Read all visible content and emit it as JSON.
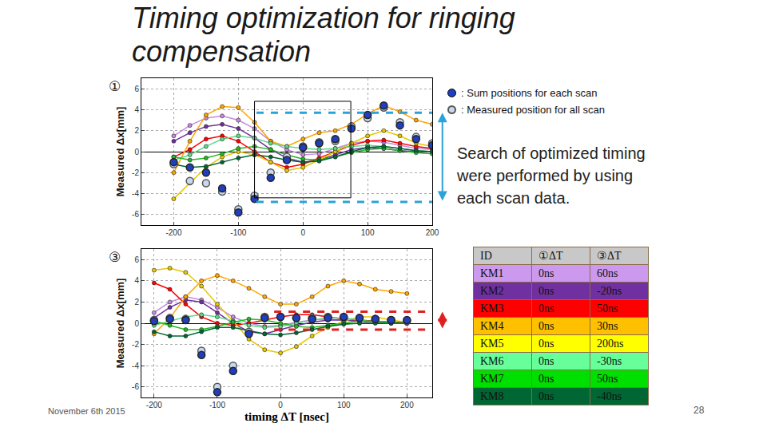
{
  "slide": {
    "title": "Timing optimization for ringing compensation",
    "note": "Search of optimized timing were performed by using each scan data.",
    "date": "November 6th 2015",
    "page": "28",
    "table": {
      "header": [
        "ID",
        "①ΔT",
        "③ΔT"
      ],
      "header_color": "#c8c8c8",
      "rows": [
        {
          "cells": [
            "KM1",
            "0ns",
            "60ns"
          ],
          "color": "#cc99ee"
        },
        {
          "cells": [
            "KM2",
            "0ns",
            "-20ns"
          ],
          "color": "#7030a0"
        },
        {
          "cells": [
            "KM3",
            "0ns",
            "50ns"
          ],
          "color": "#ff0000"
        },
        {
          "cells": [
            "KM4",
            "0ns",
            "30ns"
          ],
          "color": "#ffc000"
        },
        {
          "cells": [
            "KM5",
            "0ns",
            "200ns"
          ],
          "color": "#ffff00"
        },
        {
          "cells": [
            "KM6",
            "0ns",
            "-30ns"
          ],
          "color": "#66ff99"
        },
        {
          "cells": [
            "KM7",
            "0ns",
            "50ns"
          ],
          "color": "#00e000"
        },
        {
          "cells": [
            "KM8",
            "0ns",
            "-40ns"
          ],
          "color": "#006633"
        }
      ]
    }
  },
  "chart_data": [
    {
      "type": "line",
      "panel_label": "①",
      "ylabel": "Measured Δx[mm]",
      "xlim": [
        -250,
        200
      ],
      "xticks": [
        -200,
        -100,
        0,
        100,
        200
      ],
      "ylim": [
        -7,
        7
      ],
      "yticks": [
        -6,
        -4,
        -2,
        0,
        2,
        4,
        6
      ],
      "grid": true,
      "x": [
        -200,
        -175,
        -150,
        -125,
        -100,
        -75,
        -50,
        -25,
        0,
        25,
        50,
        75,
        100,
        125,
        150,
        175,
        200
      ],
      "box": {
        "x": [
          -75,
          74
        ],
        "y": [
          -4.4,
          4.8
        ]
      },
      "reference_lines": {
        "values": [
          3.7,
          -4.8
        ],
        "from": -72,
        "color": "#29a3d9",
        "line_style": "dashed"
      },
      "series": [
        {
          "name": "KM1",
          "color": "#c58be0",
          "marker": "circle",
          "line_style": "solid",
          "values": [
            1.5,
            2.5,
            3.2,
            3.4,
            3.0,
            2.2,
            1.0,
            0.2,
            -0.3,
            -0.2,
            0.3,
            0.8,
            1.0,
            0.9,
            0.6,
            0.3,
            0.2
          ]
        },
        {
          "name": "KM2",
          "color": "#7030a0",
          "marker": "circle",
          "line_style": "solid",
          "values": [
            1.0,
            1.8,
            2.4,
            2.6,
            2.2,
            1.3,
            0.2,
            -0.6,
            -1.0,
            -0.8,
            -0.3,
            0.2,
            0.4,
            0.3,
            0.1,
            0.0,
            0.0
          ]
        },
        {
          "name": "KM3",
          "color": "#ff0000",
          "marker": "circle",
          "line_style": "solid",
          "values": [
            -0.5,
            0.2,
            1.2,
            1.5,
            1.0,
            0.0,
            -1.0,
            -1.5,
            -1.2,
            -0.6,
            0.0,
            0.6,
            1.0,
            1.1,
            0.8,
            0.5,
            0.3
          ]
        },
        {
          "name": "KM4",
          "color": "#ffa500",
          "marker": "circle",
          "line_style": "solid",
          "values": [
            -2.0,
            1.0,
            3.5,
            4.3,
            4.2,
            2.8,
            1.0,
            0.5,
            1.2,
            1.8,
            2.0,
            2.6,
            3.6,
            4.4,
            3.8,
            3.0,
            2.6
          ]
        },
        {
          "name": "KM5",
          "color": "#e6c800",
          "marker": "circle",
          "line_style": "solid",
          "values": [
            -4.5,
            -3.0,
            -1.5,
            -0.5,
            0.0,
            -0.3,
            -1.0,
            -1.8,
            -1.5,
            -0.8,
            0.0,
            0.8,
            1.5,
            2.0,
            1.5,
            0.8,
            0.5
          ]
        },
        {
          "name": "KM6",
          "color": "#5fd98a",
          "marker": "circle",
          "line_style": "solid",
          "values": [
            -0.8,
            -0.3,
            0.5,
            1.2,
            1.5,
            1.3,
            0.8,
            0.5,
            0.3,
            0.2,
            0.3,
            0.5,
            0.6,
            0.5,
            0.3,
            0.1,
            0.0
          ]
        },
        {
          "name": "KM7",
          "color": "#22b822",
          "marker": "circle",
          "line_style": "solid",
          "values": [
            -0.5,
            -0.8,
            -0.6,
            -0.2,
            0.3,
            0.5,
            0.2,
            -0.3,
            -0.7,
            -0.8,
            -0.5,
            -0.1,
            0.2,
            0.3,
            0.1,
            -0.1,
            -0.2
          ]
        },
        {
          "name": "KM8",
          "color": "#006633",
          "marker": "circle",
          "line_style": "solid",
          "values": [
            -1.2,
            -1.5,
            -1.4,
            -1.0,
            -0.6,
            -0.3,
            -0.5,
            -0.8,
            -1.0,
            -0.9,
            -0.5,
            0.0,
            0.4,
            0.5,
            0.3,
            0.1,
            0.0
          ]
        },
        {
          "name": ": Measured position for all scan",
          "type": "scatter",
          "color": "#c8d8f0",
          "marker": "circle",
          "values": [
            -1.2,
            -2.8,
            -3.0,
            -3.8,
            -5.5,
            -4.2,
            -2.0,
            -0.5,
            0.5,
            0.9,
            1.0,
            2.4,
            3.2,
            4.2,
            2.8,
            1.4,
            0.8
          ]
        },
        {
          "name": ": Sum positions for each scan",
          "type": "scatter",
          "color": "#1f3fbf",
          "marker": "circle",
          "values": [
            -1.0,
            -1.5,
            -2.0,
            -3.5,
            -5.8,
            -4.5,
            -2.5,
            -0.8,
            0.4,
            0.8,
            1.2,
            2.2,
            3.5,
            4.4,
            2.5,
            1.2,
            0.6
          ]
        }
      ]
    },
    {
      "type": "line",
      "panel_label": "③",
      "ylabel": "Measured Δx[mm]",
      "xlabel": "timing ΔT [nsec]",
      "xlim": [
        -220,
        240
      ],
      "xticks": [
        -200,
        -100,
        0,
        100,
        200
      ],
      "ylim": [
        -7,
        7
      ],
      "yticks": [
        -6,
        -4,
        -2,
        0,
        2,
        4,
        6
      ],
      "grid": true,
      "x": [
        -200,
        -175,
        -150,
        -125,
        -100,
        -75,
        -50,
        -25,
        0,
        25,
        50,
        75,
        100,
        125,
        150,
        175,
        200
      ],
      "reference_lines": {
        "values": [
          1.1,
          -0.6
        ],
        "from": -10,
        "color": "#e02020",
        "line_style": "dashed"
      },
      "series": [
        {
          "name": "KM1",
          "color": "#c58be0",
          "marker": "circle",
          "line_style": "solid",
          "values": [
            1.0,
            2.0,
            2.5,
            2.2,
            1.5,
            0.6,
            0.0,
            -0.3,
            -0.2,
            0.1,
            0.3,
            0.4,
            0.3,
            0.2,
            0.1,
            0.0,
            0.0
          ]
        },
        {
          "name": "KM2",
          "color": "#7030a0",
          "marker": "circle",
          "line_style": "solid",
          "values": [
            0.5,
            1.5,
            2.2,
            2.0,
            1.0,
            0.0,
            -0.8,
            -1.0,
            -0.6,
            -0.2,
            0.1,
            0.3,
            0.3,
            0.2,
            0.1,
            0.0,
            0.0
          ]
        },
        {
          "name": "KM3",
          "color": "#ff0000",
          "marker": "circle",
          "line_style": "solid",
          "values": [
            3.8,
            3.2,
            1.8,
            0.6,
            0.0,
            -0.2,
            0.0,
            0.3,
            0.6,
            0.8,
            0.8,
            0.6,
            0.4,
            0.3,
            0.2,
            0.1,
            0.1
          ]
        },
        {
          "name": "KM4",
          "color": "#ffa500",
          "marker": "circle",
          "line_style": "solid",
          "values": [
            -1.0,
            0.5,
            2.5,
            4.0,
            4.5,
            4.0,
            3.3,
            2.5,
            1.8,
            1.8,
            2.5,
            3.5,
            4.0,
            3.7,
            3.2,
            3.0,
            2.8
          ]
        },
        {
          "name": "KM5",
          "color": "#e6c800",
          "marker": "circle",
          "line_style": "solid",
          "values": [
            5.0,
            5.2,
            4.8,
            3.5,
            1.8,
            0.2,
            -1.5,
            -2.5,
            -2.8,
            -2.2,
            -1.2,
            -0.4,
            0.2,
            0.6,
            0.6,
            0.3,
            0.1
          ]
        },
        {
          "name": "KM6",
          "color": "#5fd98a",
          "marker": "circle",
          "line_style": "solid",
          "values": [
            -0.2,
            0.2,
            0.6,
            0.8,
            0.6,
            0.2,
            -0.2,
            -0.4,
            -0.3,
            0.0,
            0.3,
            0.5,
            0.5,
            0.3,
            0.1,
            0.0,
            0.0
          ]
        },
        {
          "name": "KM7",
          "color": "#22b822",
          "marker": "circle",
          "line_style": "solid",
          "values": [
            0.2,
            -0.2,
            -0.6,
            -0.6,
            -0.3,
            0.1,
            0.4,
            0.3,
            0.0,
            -0.3,
            -0.4,
            -0.2,
            0.0,
            0.2,
            0.2,
            0.1,
            0.0
          ]
        },
        {
          "name": "KM8",
          "color": "#006633",
          "marker": "circle",
          "line_style": "solid",
          "values": [
            -0.8,
            -1.2,
            -1.2,
            -0.8,
            -0.4,
            -0.4,
            -0.7,
            -1.0,
            -1.1,
            -0.9,
            -0.6,
            -0.3,
            -0.1,
            0.0,
            0.0,
            0.0,
            0.0
          ]
        },
        {
          "name": ": Measured position for all scan",
          "type": "scatter",
          "color": "#c8d8f0",
          "marker": "circle",
          "values": [
            0.3,
            0.5,
            0.4,
            -2.6,
            -6.0,
            -4.0,
            -0.8,
            0.6,
            0.6,
            0.5,
            0.5,
            0.6,
            0.5,
            0.5,
            0.4,
            0.3,
            0.2
          ]
        },
        {
          "name": ": Sum positions for each scan",
          "type": "scatter",
          "color": "#1f3fbf",
          "marker": "circle",
          "values": [
            0.2,
            0.4,
            0.3,
            -3.0,
            -6.5,
            -4.5,
            -1.0,
            0.5,
            0.6,
            0.5,
            0.4,
            0.5,
            0.6,
            0.5,
            0.4,
            0.3,
            0.3
          ]
        }
      ]
    }
  ]
}
